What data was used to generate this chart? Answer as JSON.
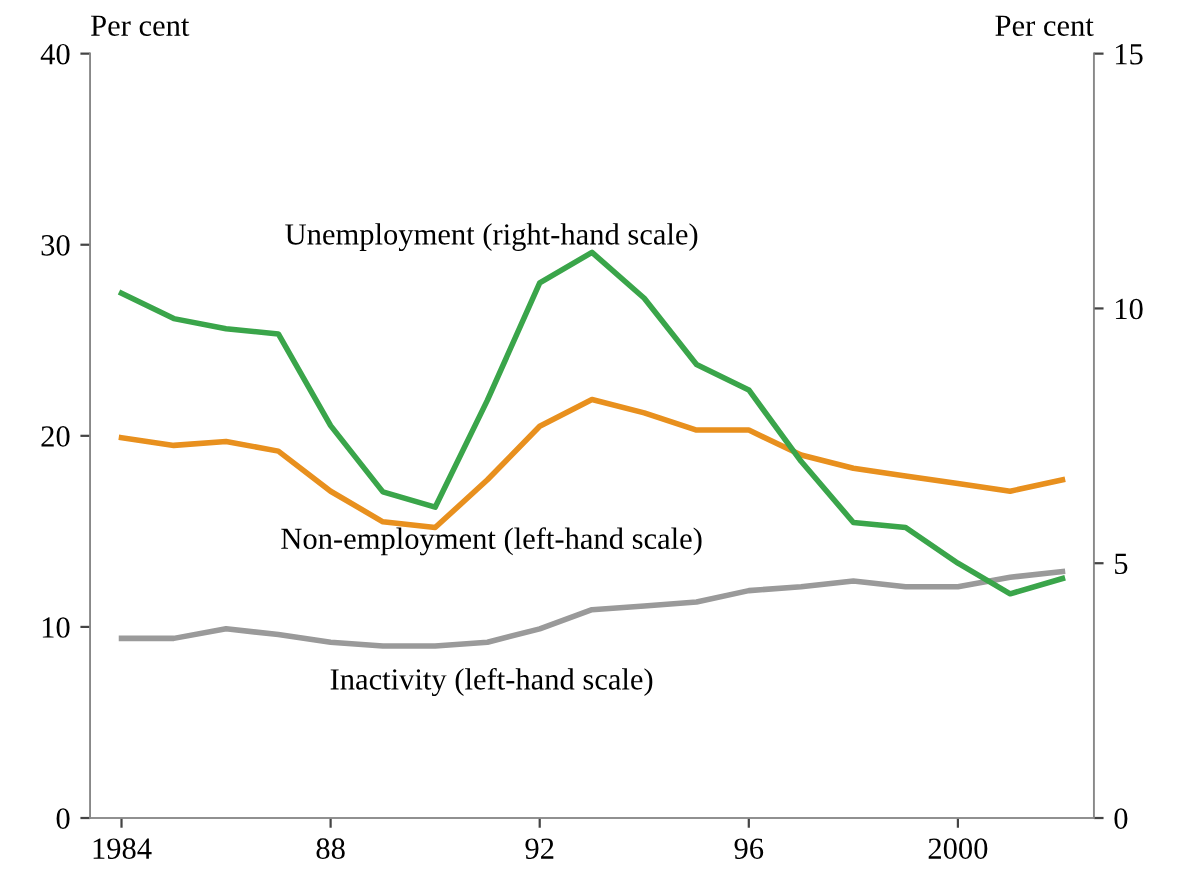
{
  "chart_data": {
    "type": "line",
    "x": [
      1984,
      1985,
      1986,
      1987,
      1988,
      1989,
      1990,
      1991,
      1992,
      1993,
      1994,
      1995,
      1996,
      1997,
      1998,
      1999,
      2000,
      2001,
      2002
    ],
    "series": [
      {
        "name": "Unemployment (right-hand scale)",
        "color": "#3aa54a",
        "axis": "y2",
        "values": [
          10.3,
          9.8,
          9.6,
          9.5,
          7.7,
          6.4,
          6.1,
          8.2,
          10.5,
          11.1,
          10.2,
          8.9,
          8.4,
          7.0,
          5.8,
          5.7,
          5.0,
          4.4,
          4.7
        ]
      },
      {
        "name": "Non-employment (left-hand scale)",
        "color": "#e8901e",
        "values": [
          19.9,
          19.5,
          19.7,
          19.2,
          17.1,
          15.5,
          15.2,
          17.7,
          20.5,
          21.9,
          21.2,
          20.3,
          20.3,
          19.0,
          18.3,
          17.9,
          17.5,
          17.1,
          17.7
        ]
      },
      {
        "name": "Inactivity (left-hand scale)",
        "color": "#9a9a9a",
        "values": [
          9.4,
          9.4,
          9.9,
          9.6,
          9.2,
          9.0,
          9.0,
          9.2,
          9.9,
          10.9,
          11.1,
          11.3,
          11.9,
          12.1,
          12.4,
          12.1,
          12.1,
          12.6,
          12.9
        ]
      }
    ],
    "ylabel": "Per cent",
    "y2label": "Per cent",
    "xlim": [
      1983.4,
      2002.6
    ],
    "xticks": [
      1984,
      {
        "value": 1988,
        "label": "88"
      },
      {
        "value": 1992,
        "label": "92"
      },
      {
        "value": 1996,
        "label": "96"
      },
      2000
    ],
    "ylim": [
      0,
      40
    ],
    "yticks": [
      0,
      10,
      20,
      30,
      40
    ],
    "y2lim": [
      0,
      15
    ],
    "y2ticks": [
      0,
      5,
      10,
      15
    ],
    "grid": false,
    "marker": "none",
    "line_style": "solid"
  }
}
